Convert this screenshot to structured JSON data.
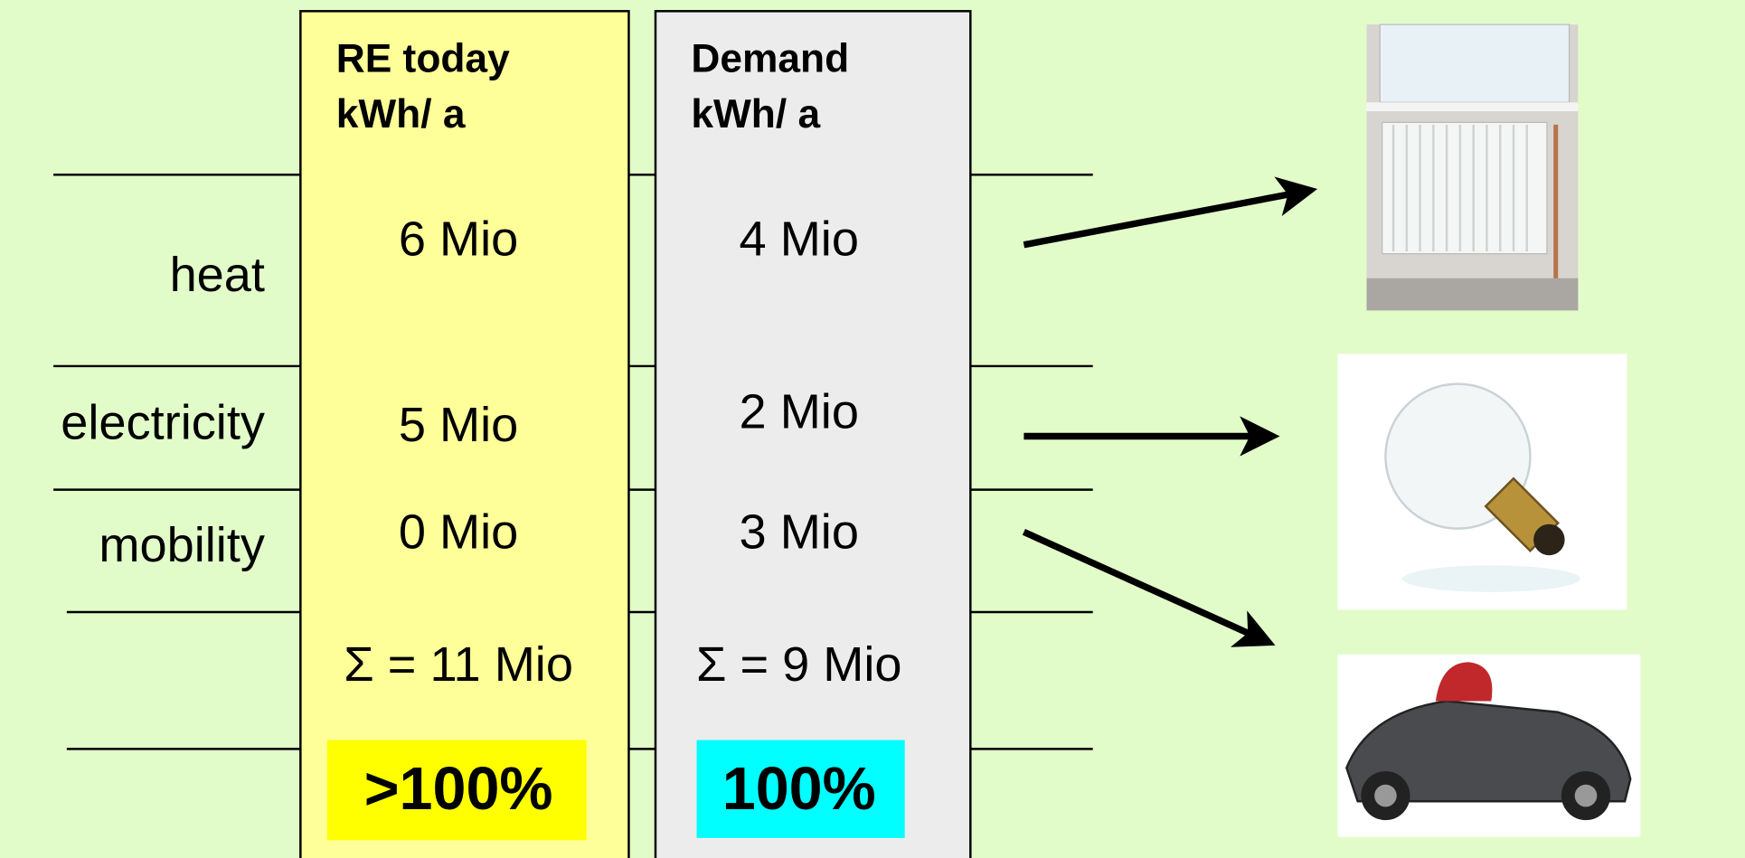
{
  "rows": [
    "heat",
    "electricity",
    "mobility"
  ],
  "columns": [
    {
      "title": "RE today",
      "unit": "kWh/ a",
      "values": [
        "6 Mio",
        "5 Mio",
        "0 Mio"
      ],
      "sum": "Σ = 11 Mio",
      "share": ">100%"
    },
    {
      "title": "Demand",
      "unit": "kWh/ a",
      "values": [
        "4 Mio",
        "2 Mio",
        "3 Mio"
      ],
      "sum": "Σ = 9 Mio",
      "share": "100%"
    }
  ]
}
